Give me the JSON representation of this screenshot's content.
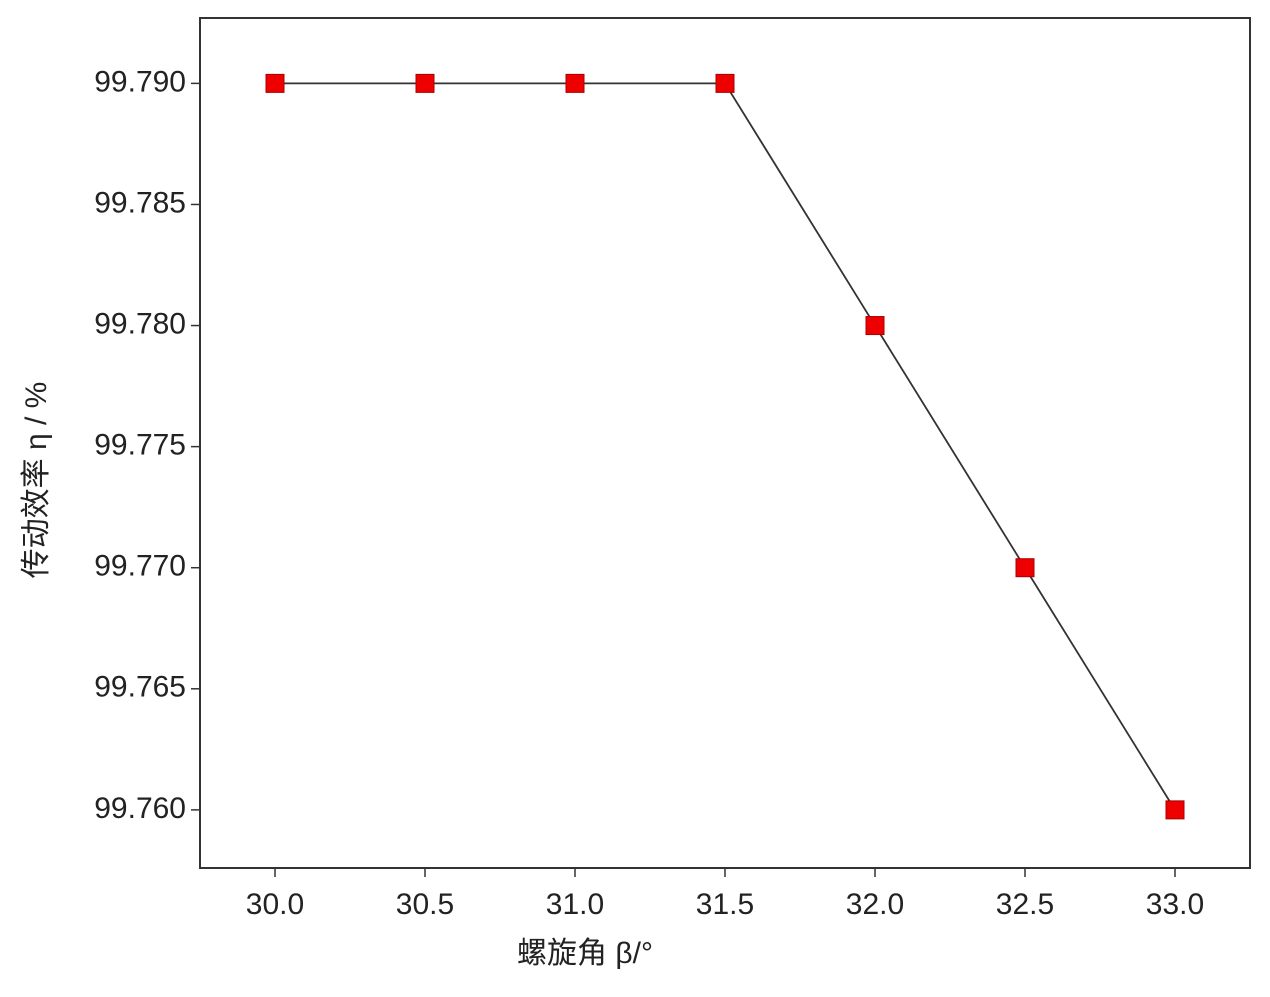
{
  "chart_data": {
    "type": "line",
    "x_label": "螺旋角 β/°",
    "y_label": "传动效率 η / %",
    "x": [
      30.0,
      30.5,
      31.0,
      31.5,
      32.0,
      32.5,
      33.0
    ],
    "series": [
      {
        "color": "#ee0000",
        "line_color": "#333333",
        "values": [
          99.79,
          99.79,
          99.79,
          99.79,
          99.78,
          99.77,
          99.76
        ]
      }
    ],
    "xlim": [
      29.75,
      33.25
    ],
    "xticks": [
      {
        "value": 30,
        "label": "30.0"
      },
      {
        "value": 30.5,
        "label": "30.5"
      },
      {
        "value": 31,
        "label": "31.0"
      },
      {
        "value": 31.5,
        "label": "31.5"
      },
      {
        "value": 32,
        "label": "32.0"
      },
      {
        "value": 32.5,
        "label": "32.5"
      },
      {
        "value": 33,
        "label": "33.0"
      }
    ],
    "ylim": [
      99.7576,
      99.7927
    ],
    "yticks": [
      {
        "value": 99.76,
        "label": "99.760"
      },
      {
        "value": 99.765,
        "label": "99.765"
      },
      {
        "value": 99.77,
        "label": "99.770"
      },
      {
        "value": 99.775,
        "label": "99.775"
      },
      {
        "value": 99.78,
        "label": "99.780"
      },
      {
        "value": 99.785,
        "label": "99.785"
      },
      {
        "value": 99.79,
        "label": "99.790"
      }
    ],
    "grid": false
  }
}
